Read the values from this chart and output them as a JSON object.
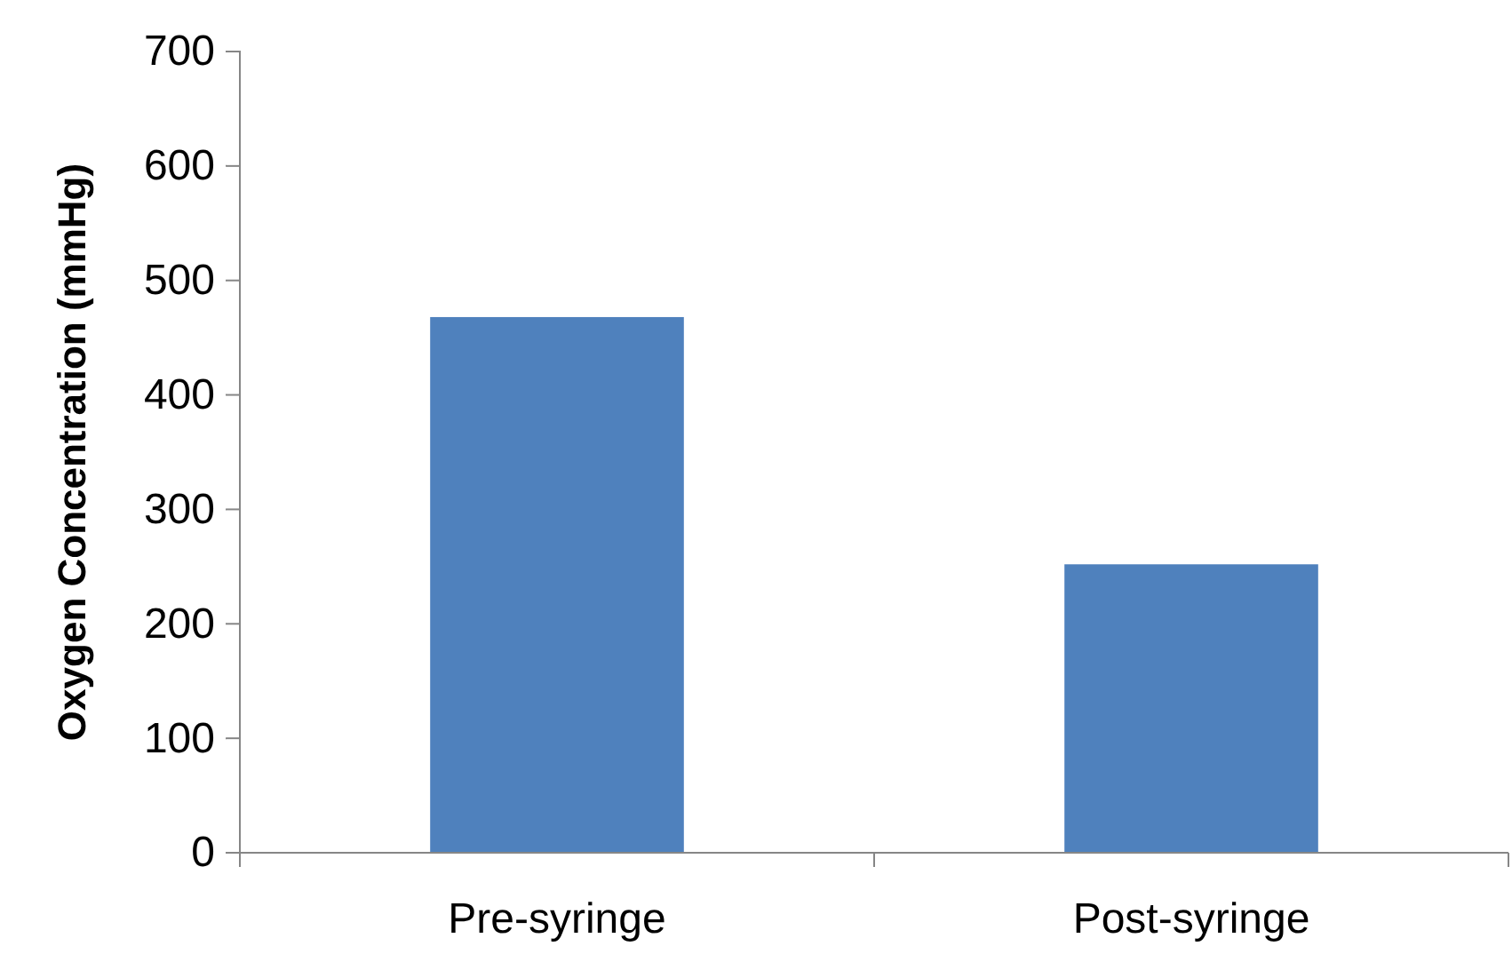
{
  "chart_data": {
    "type": "bar",
    "ylabel": "Oxygen Concentration (mmHg)",
    "categories": [
      "Pre-syringe",
      "Post-syringe"
    ],
    "values": [
      468,
      252
    ],
    "color": "#4f81bd",
    "ylim": [
      0,
      700
    ],
    "yticks": [
      0,
      100,
      200,
      300,
      400,
      500,
      600,
      700
    ],
    "grid": false
  }
}
